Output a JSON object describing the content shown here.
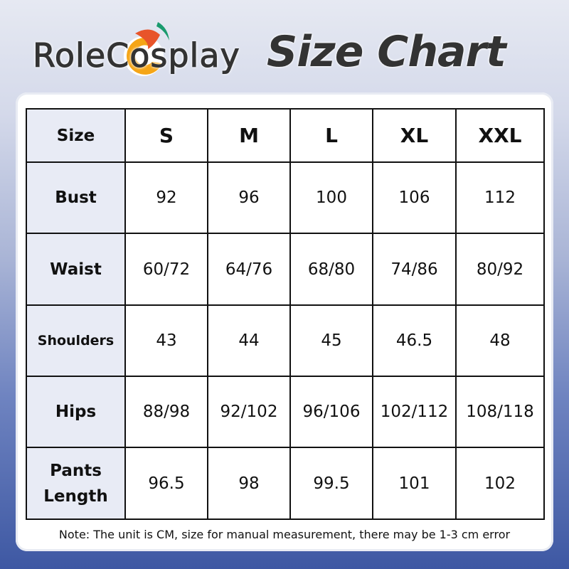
{
  "header": {
    "logo_text": "RoleCosplay",
    "title": "Size Chart"
  },
  "table": {
    "corner": "Size",
    "sizes": [
      "S",
      "M",
      "L",
      "XL",
      "XXL"
    ],
    "rows": [
      {
        "label": "Bust",
        "values": [
          "92",
          "96",
          "100",
          "106",
          "112"
        ]
      },
      {
        "label": "Waist",
        "values": [
          "60/72",
          "64/76",
          "68/80",
          "74/86",
          "80/92"
        ]
      },
      {
        "label": "Shoulders",
        "values": [
          "43",
          "44",
          "45",
          "46.5",
          "48"
        ]
      },
      {
        "label": "Hips",
        "values": [
          "88/98",
          "92/102",
          "96/106",
          "102/112",
          "108/118"
        ]
      },
      {
        "label": "Pants Length",
        "values": [
          "96.5",
          "98",
          "99.5",
          "101",
          "102"
        ]
      }
    ]
  },
  "note": "Note: The unit is CM, size for manual measurement, there may be 1-3 cm error",
  "colors": {
    "header_cell": "#e8ebf5",
    "bg_bottom": "#3e58a3",
    "logo_orange": "#f5a516",
    "logo_red": "#e8542a",
    "logo_green": "#1a9b6e"
  }
}
